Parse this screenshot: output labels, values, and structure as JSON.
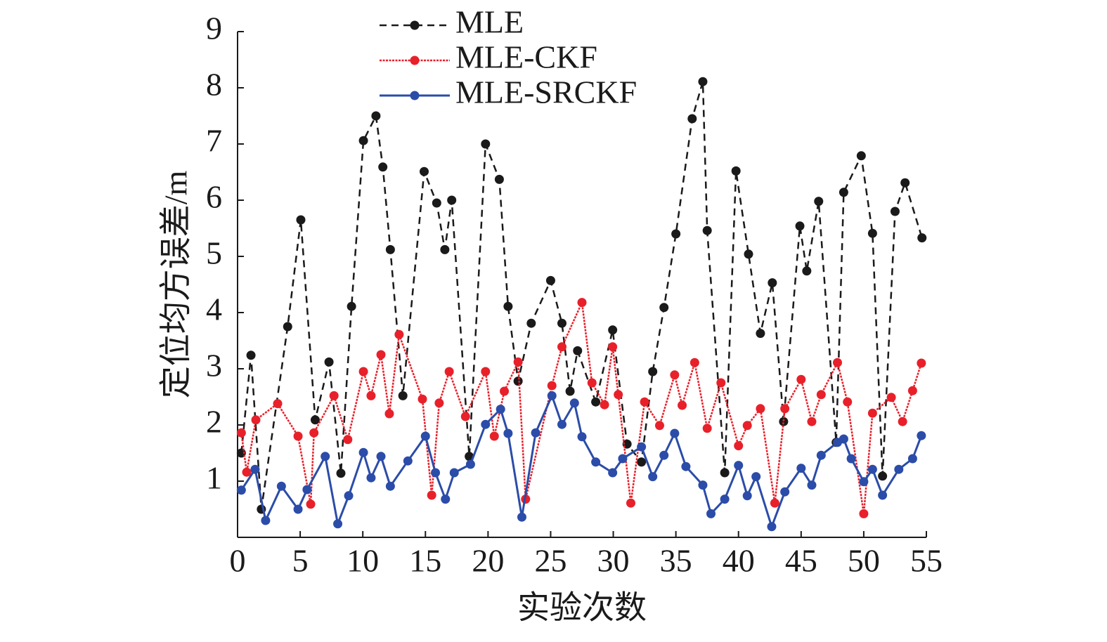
{
  "chart_data": {
    "type": "line",
    "xlabel": "实验次数",
    "ylabel": "定位均方误差/m",
    "xlim": [
      0,
      55
    ],
    "ylim": [
      0,
      9
    ],
    "xticks": [
      0,
      5,
      10,
      15,
      20,
      25,
      30,
      35,
      40,
      45,
      50,
      55
    ],
    "yticks": [
      1,
      2,
      3,
      4,
      5,
      6,
      7,
      8,
      9
    ],
    "legend": "top",
    "series": [
      {
        "name": "MLE",
        "color": "#1a1a1a",
        "line_style": "dashed",
        "x": [
          0.3,
          1.07,
          1.9,
          4.0,
          5.05,
          6.2,
          7.3,
          8.25,
          9.1,
          10.05,
          11.05,
          11.6,
          12.2,
          13.2,
          14.9,
          15.9,
          16.55,
          17.1,
          18.5,
          19.8,
          20.9,
          21.6,
          22.4,
          23.45,
          25.0,
          25.9,
          26.55,
          27.15,
          28.6,
          29.95,
          31.1,
          32.25,
          33.15,
          34.05,
          35.0,
          36.3,
          37.15,
          37.5,
          38.9,
          39.8,
          40.8,
          41.75,
          42.7,
          43.6,
          44.9,
          45.45,
          46.4,
          47.8,
          48.4,
          49.8,
          50.7,
          51.5,
          52.5,
          53.3,
          54.65
        ],
        "values": [
          1.5,
          3.24,
          0.5,
          3.75,
          5.65,
          2.09,
          3.12,
          1.14,
          4.11,
          7.06,
          7.5,
          6.59,
          5.12,
          2.52,
          6.51,
          5.95,
          5.12,
          6.0,
          1.44,
          7.0,
          6.37,
          4.11,
          2.78,
          3.81,
          4.57,
          3.81,
          2.6,
          3.32,
          2.41,
          3.69,
          1.66,
          1.34,
          2.95,
          4.09,
          5.4,
          7.45,
          8.11,
          5.46,
          1.15,
          6.52,
          5.04,
          3.63,
          4.53,
          2.06,
          5.54,
          4.74,
          5.98,
          1.69,
          6.14,
          6.79,
          5.41,
          1.09,
          5.8,
          6.31,
          5.33
        ]
      },
      {
        "name": "MLE-CKF",
        "color": "#e8202a",
        "line_style": "dotted",
        "x": [
          0.3,
          0.73,
          1.46,
          3.2,
          4.83,
          5.84,
          6.1,
          7.7,
          8.8,
          10.05,
          10.66,
          11.45,
          12.12,
          12.9,
          14.76,
          15.5,
          16.1,
          16.9,
          18.2,
          19.8,
          20.5,
          21.3,
          22.4,
          23.0,
          25.1,
          25.9,
          27.5,
          28.3,
          29.3,
          29.95,
          30.4,
          31.4,
          32.5,
          33.7,
          34.9,
          35.5,
          36.5,
          37.5,
          38.6,
          40.0,
          40.7,
          41.75,
          42.9,
          43.7,
          45.0,
          45.85,
          46.6,
          47.9,
          48.7,
          50.0,
          50.7,
          52.2,
          53.1,
          53.9,
          54.6
        ],
        "values": [
          1.86,
          1.16,
          2.09,
          2.38,
          1.8,
          0.59,
          1.86,
          2.52,
          1.74,
          2.95,
          2.52,
          3.25,
          2.2,
          3.61,
          2.46,
          0.75,
          2.39,
          2.95,
          2.15,
          2.95,
          1.8,
          2.6,
          3.12,
          0.68,
          2.7,
          3.39,
          4.18,
          2.75,
          2.36,
          3.39,
          2.54,
          0.61,
          2.41,
          1.99,
          2.89,
          2.35,
          3.11,
          1.94,
          2.75,
          1.63,
          1.99,
          2.29,
          0.61,
          2.29,
          2.81,
          2.06,
          2.54,
          3.11,
          2.41,
          0.42,
          2.21,
          2.49,
          2.06,
          2.61,
          3.1
        ]
      },
      {
        "name": "MLE-SRCKF",
        "color": "#2b4ca8",
        "line_style": "solid",
        "x": [
          0.3,
          1.4,
          2.24,
          3.5,
          4.83,
          5.55,
          7.0,
          8.0,
          8.87,
          10.05,
          10.66,
          11.45,
          12.2,
          13.6,
          15.0,
          15.8,
          16.6,
          17.3,
          18.6,
          19.8,
          21.0,
          21.6,
          22.7,
          23.8,
          25.1,
          25.9,
          26.9,
          27.5,
          28.6,
          29.95,
          30.75,
          32.25,
          33.15,
          34.05,
          34.9,
          35.8,
          37.15,
          37.8,
          38.9,
          40.0,
          40.7,
          41.4,
          42.65,
          43.7,
          45.0,
          45.85,
          46.6,
          47.9,
          48.4,
          49.0,
          50.0,
          50.7,
          51.5,
          52.8,
          53.9,
          54.6
        ],
        "values": [
          0.84,
          1.21,
          0.3,
          0.91,
          0.5,
          0.85,
          1.44,
          0.24,
          0.74,
          1.51,
          1.06,
          1.44,
          0.91,
          1.36,
          1.8,
          1.15,
          0.68,
          1.15,
          1.3,
          2.01,
          2.28,
          1.85,
          0.36,
          1.86,
          2.52,
          2.01,
          2.39,
          1.79,
          1.34,
          1.15,
          1.4,
          1.61,
          1.08,
          1.46,
          1.85,
          1.26,
          0.93,
          0.42,
          0.68,
          1.28,
          0.74,
          1.08,
          0.19,
          0.81,
          1.23,
          0.93,
          1.46,
          1.69,
          1.75,
          1.4,
          0.99,
          1.21,
          0.75,
          1.21,
          1.4,
          1.81
        ]
      }
    ]
  }
}
